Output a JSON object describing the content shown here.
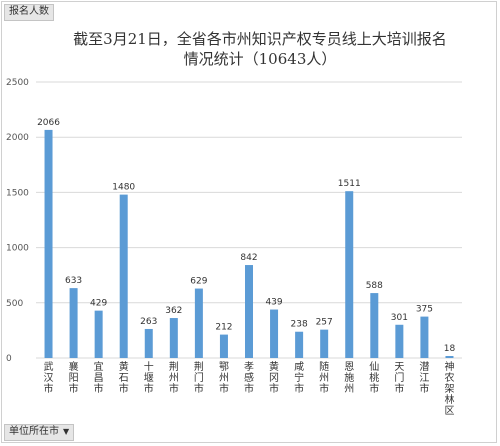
{
  "pivot": {
    "values_field": "报名人数",
    "row_field": "单位所在市"
  },
  "colors": {
    "bar": "#5b9bd5",
    "grid": "#d9d9d9"
  },
  "chart_data": {
    "type": "bar",
    "title_line1": "截至3月21日，全省各市州知识产权专员线上大培训报名",
    "title_line2": "情况统计（10643人）",
    "categories": [
      "武汉市",
      "襄阳市",
      "宜昌市",
      "黄石市",
      "十堰市",
      "荆州市",
      "荆门市",
      "鄂州市",
      "孝感市",
      "黄冈市",
      "咸宁市",
      "随州市",
      "恩施州",
      "仙桃市",
      "天门市",
      "潜江市",
      "神农架林区"
    ],
    "values": [
      2066,
      633,
      429,
      1480,
      263,
      362,
      629,
      212,
      842,
      439,
      238,
      257,
      1511,
      588,
      301,
      375,
      18
    ],
    "ylim": [
      0,
      2500
    ],
    "yticks": [
      0,
      500,
      1000,
      1500,
      2000,
      2500
    ],
    "grid": true,
    "legend": "none"
  }
}
